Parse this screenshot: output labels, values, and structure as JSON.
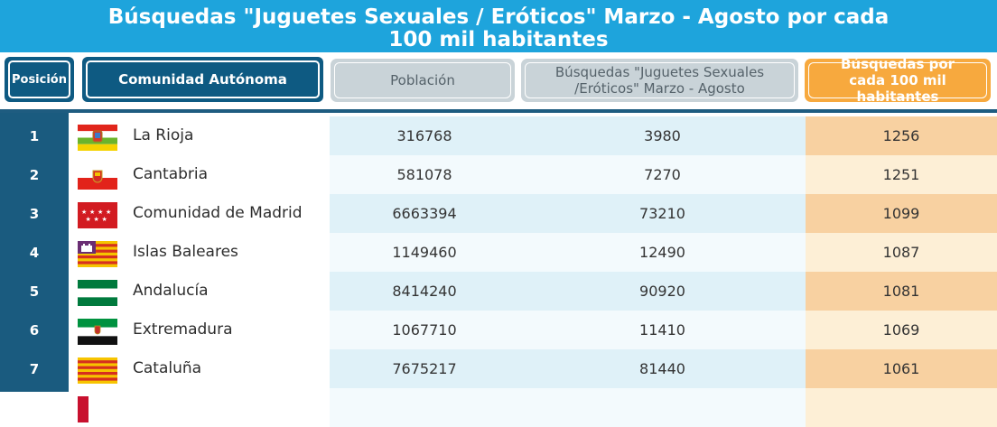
{
  "title": {
    "line1": "Búsquedas \"Juguetes Sexuales / Eróticos\" Marzo - Agosto por cada",
    "line2": "100 mil habitantes"
  },
  "headers": {
    "position": "Posición",
    "community": "Comunidad  Autónoma",
    "population": "Población",
    "searches": "Búsquedas \"Juguetes Sexuales /Eróticos\" Marzo - Agosto",
    "per_100k": "Búsquedas por cada 100 mil habitantes"
  },
  "rows": [
    {
      "position": "1",
      "community": "La Rioja",
      "population": "316768",
      "searches": "3980",
      "per_100k": "1256",
      "flag_icon": "flag-la-rioja-icon"
    },
    {
      "position": "2",
      "community": "Cantabria",
      "population": "581078",
      "searches": "7270",
      "per_100k": "1251",
      "flag_icon": "flag-cantabria-icon"
    },
    {
      "position": "3",
      "community": "Comunidad de Madrid",
      "population": "6663394",
      "searches": "73210",
      "per_100k": "1099",
      "flag_icon": "flag-madrid-icon"
    },
    {
      "position": "4",
      "community": "Islas Baleares",
      "population": "1149460",
      "searches": "12490",
      "per_100k": "1087",
      "flag_icon": "flag-baleares-icon"
    },
    {
      "position": "5",
      "community": "Andalucía",
      "population": "8414240",
      "searches": "90920",
      "per_100k": "1081",
      "flag_icon": "flag-andalucia-icon"
    },
    {
      "position": "6",
      "community": "Extremadura",
      "population": "1067710",
      "searches": "11410",
      "per_100k": "1069",
      "flag_icon": "flag-extremadura-icon"
    },
    {
      "position": "7",
      "community": "Cataluña",
      "population": "7675217",
      "searches": "81440",
      "per_100k": "1061",
      "flag_icon": "flag-cataluna-icon"
    }
  ],
  "colors": {
    "title_bg": "#1ea4dc",
    "position_column": "#1a5b7f",
    "highlight_column": "#f7a93e"
  }
}
